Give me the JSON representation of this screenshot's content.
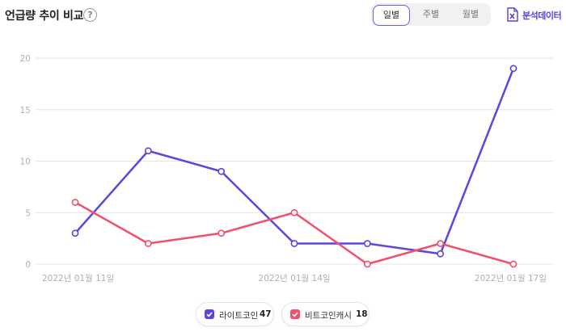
{
  "header": {
    "title": "언급량 추이 비교",
    "help_glyph": "?",
    "tabs": [
      {
        "label": "일별",
        "active": true
      },
      {
        "label": "주별",
        "active": false
      },
      {
        "label": "월별",
        "active": false
      }
    ],
    "export_label": "분석데이터"
  },
  "colors": {
    "series1": "#5b47e0",
    "series2": "#f0506e",
    "grid": "#e4e4e4",
    "axis_text": "#b0b0b0",
    "accent": "#6d5ce8"
  },
  "legend": [
    {
      "name": "라이트코인",
      "total": "47",
      "color": "#5b47e0"
    },
    {
      "name": "비트코인캐시",
      "total": "18",
      "color": "#f0506e"
    }
  ],
  "chart_data": {
    "type": "line",
    "x": [
      "2022년 01월 11일",
      "2022년 01월 12일",
      "2022년 01월 13일",
      "2022년 01월 14일",
      "2022년 01월 15일",
      "2022년 01월 16일",
      "2022년 01월 17일"
    ],
    "x_tick_labels": [
      "2022년 01월 11일",
      "2022년 01월 14일",
      "2022년 01월 17일"
    ],
    "series": [
      {
        "name": "라이트코인",
        "values": [
          3,
          11,
          9,
          2,
          2,
          1,
          19
        ]
      },
      {
        "name": "비트코인캐시",
        "values": [
          6,
          2,
          3,
          5,
          0,
          2,
          0
        ]
      }
    ],
    "ylim": [
      0,
      20
    ],
    "y_ticks": [
      "0",
      "5",
      "10",
      "15",
      "20"
    ],
    "grid": true,
    "legend_position": "bottom"
  }
}
